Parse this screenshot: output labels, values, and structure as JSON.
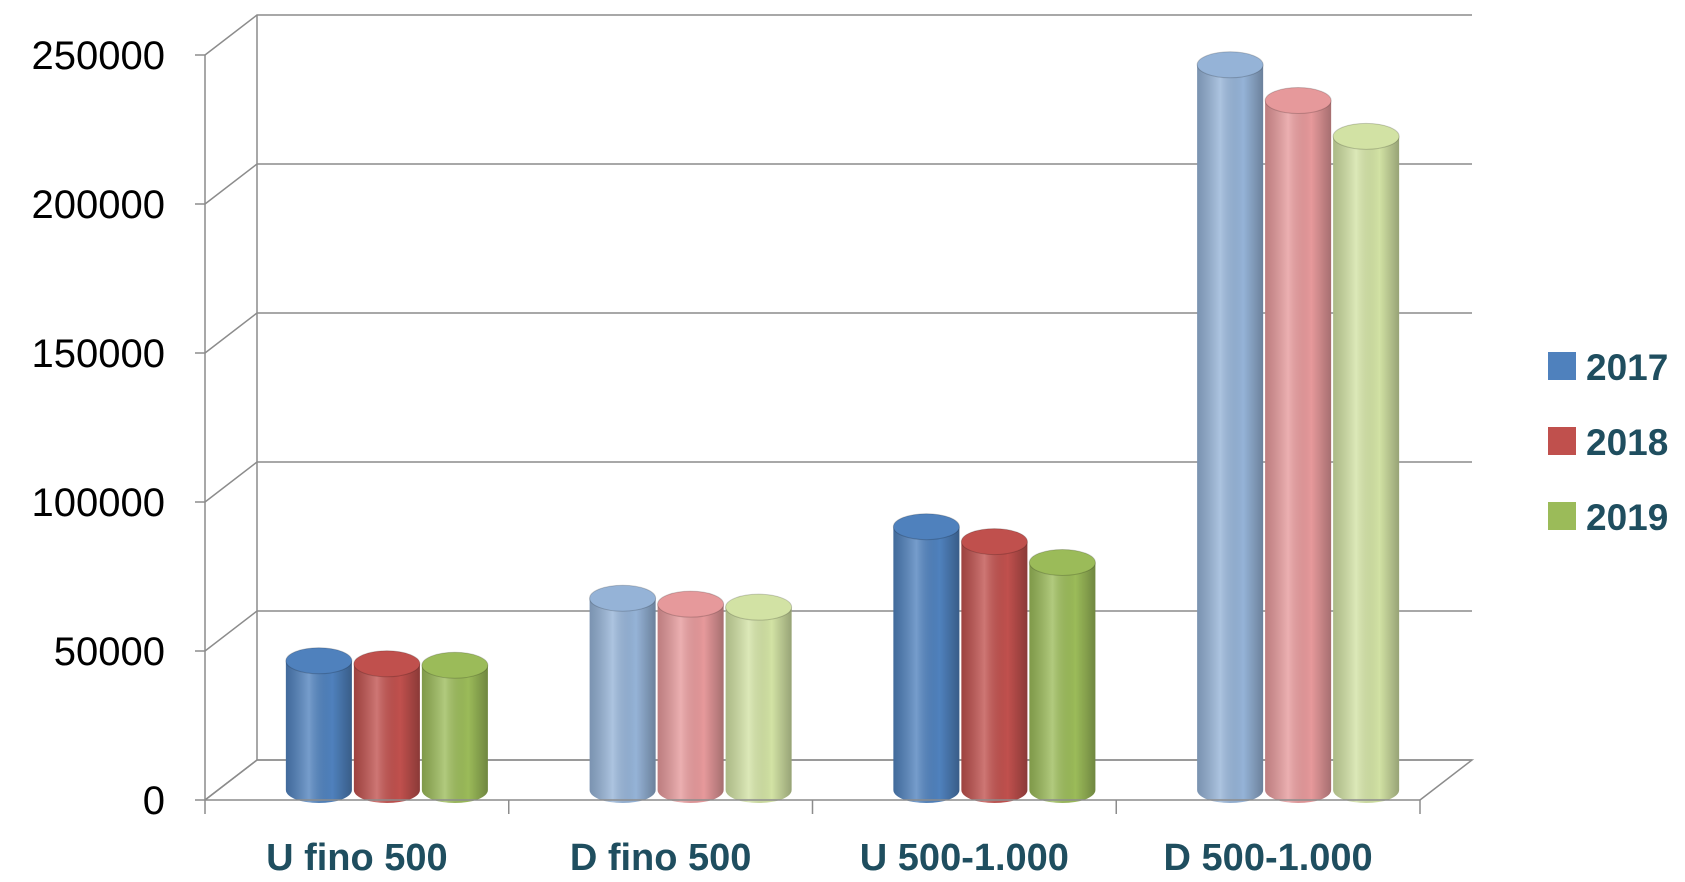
{
  "chart_data": {
    "type": "bar",
    "style": "3d-cylinder",
    "categories": [
      "U fino 500",
      "D fino 500",
      "U 500-1.000",
      "D 500-1.000"
    ],
    "series": [
      {
        "name": "2017",
        "color": "#4f81bd",
        "light": "#95b3d7",
        "values": [
          40000,
          61000,
          85000,
          240000
        ]
      },
      {
        "name": "2018",
        "color": "#c0504d",
        "light": "#e6999b",
        "values": [
          39000,
          59000,
          80000,
          228000
        ]
      },
      {
        "name": "2019",
        "color": "#9bbb59",
        "light": "#d2e2a4",
        "values": [
          38500,
          58000,
          73000,
          216000
        ]
      }
    ],
    "light_categories": [
      1,
      3
    ],
    "yticks": [
      "0",
      "50000",
      "100000",
      "150000",
      "200000",
      "250000"
    ],
    "ylim": [
      0,
      250000
    ],
    "grid": true,
    "legend": "right"
  }
}
